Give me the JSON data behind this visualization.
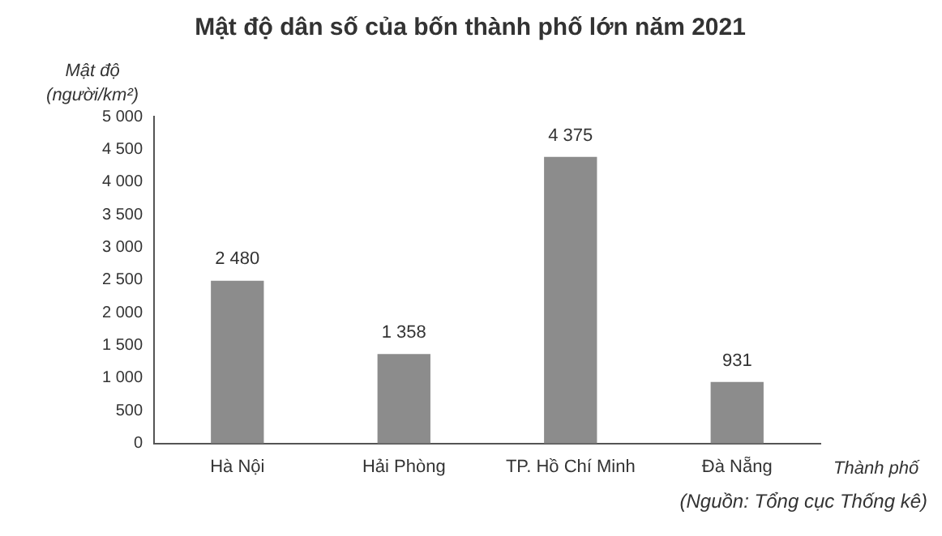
{
  "chart_data": {
    "type": "bar",
    "title": "Mật độ dân số của bốn thành phố lớn năm 2021",
    "ylabel": "Mật độ\n(người/km²)",
    "xlabel": "Thành phố",
    "annotations": [
      "(Nguồn: Tổng cục Thống kê)"
    ],
    "categories": [
      "Hà Nội",
      "Hải Phòng",
      "TP. Hồ Chí Minh",
      "Đà Nẵng"
    ],
    "values": [
      2480,
      1358,
      4375,
      931
    ],
    "color": "#8c8c8c",
    "value_labels": [
      "2 480",
      "1 358",
      "4 375",
      "931"
    ],
    "ylim": [
      0,
      5000
    ],
    "yticks": [
      0,
      {
        "value": 500,
        "label": "500"
      },
      {
        "value": 1000,
        "label": "1 000"
      },
      {
        "value": 1500,
        "label": "1 500"
      },
      {
        "value": 2000,
        "label": "2 000"
      },
      {
        "value": 2500,
        "label": "2 500"
      },
      {
        "value": 3000,
        "label": "3 000"
      },
      {
        "value": 3500,
        "label": "3 500"
      },
      {
        "value": 4000,
        "label": "4 000"
      },
      {
        "value": 4500,
        "label": "4 500"
      },
      {
        "value": 5000,
        "label": "5 000"
      }
    ]
  }
}
